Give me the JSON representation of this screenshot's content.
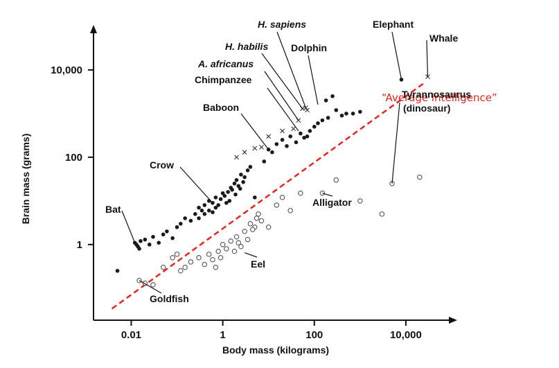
{
  "chart_data": {
    "type": "scatter",
    "title": "",
    "xlabel": "Body mass (kilograms)",
    "ylabel": "Brain mass (grams)",
    "x_scale": "log",
    "y_scale": "log",
    "xlim": [
      0.0015,
      100000
    ],
    "ylim": [
      0.0185,
      80000
    ],
    "x_ticks": [
      {
        "value": 0.01,
        "label": "0.01"
      },
      {
        "value": 1,
        "label": "1"
      },
      {
        "value": 100,
        "label": "100"
      },
      {
        "value": 10000,
        "label": "10,000"
      }
    ],
    "y_ticks": [
      {
        "value": 1,
        "label": "1"
      },
      {
        "value": 100,
        "label": "100"
      },
      {
        "value": 10000,
        "label": "10,000"
      }
    ],
    "grid": false,
    "legend": null,
    "colors": {
      "filled": "#1a1a1a",
      "open": "#555555",
      "cross": "#333333",
      "trend": "#e8231f"
    },
    "series": [
      {
        "marker": "filled-circle",
        "points": [
          [
            0.005,
            0.25
          ],
          [
            0.012,
            1.1
          ],
          [
            0.014,
            0.9
          ],
          [
            0.016,
            1.2
          ],
          [
            0.013,
            1.0
          ],
          [
            0.015,
            0.8
          ],
          [
            0.02,
            1.3
          ],
          [
            0.025,
            1.0
          ],
          [
            0.03,
            1.5
          ],
          [
            0.04,
            1.1
          ],
          [
            0.05,
            1.7
          ],
          [
            0.06,
            2.0
          ],
          [
            0.08,
            1.4
          ],
          [
            0.1,
            2.5
          ],
          [
            0.12,
            3.0
          ],
          [
            0.15,
            4.0
          ],
          [
            0.2,
            3.5
          ],
          [
            0.25,
            5.0
          ],
          [
            0.3,
            7.0
          ],
          [
            0.35,
            6.0
          ],
          [
            0.4,
            8.0
          ],
          [
            0.5,
            10.0
          ],
          [
            0.6,
            9.0
          ],
          [
            0.7,
            12.0
          ],
          [
            0.8,
            8.0
          ],
          [
            1.0,
            15.0
          ],
          [
            1.2,
            9.0
          ],
          [
            1.5,
            20.0
          ],
          [
            1.8,
            25.0
          ],
          [
            2.0,
            30.0
          ],
          [
            2.2,
            22.0
          ],
          [
            2.5,
            40.0
          ],
          [
            3.0,
            35.0
          ],
          [
            3.5,
            50.0
          ],
          [
            0.5,
            6.0
          ],
          [
            0.7,
            7.0
          ],
          [
            0.9,
            11.0
          ],
          [
            1.1,
            13.0
          ],
          [
            1.3,
            16.0
          ],
          [
            1.6,
            18.0
          ],
          [
            1.9,
            14.0
          ],
          [
            2.4,
            19.0
          ],
          [
            2.8,
            27.0
          ],
          [
            4.0,
            60.0
          ],
          [
            0.3,
            4.0
          ],
          [
            0.4,
            5.0
          ],
          [
            0.6,
            5.5
          ],
          [
            1.4,
            10.0
          ],
          [
            5.0,
            12.0
          ],
          [
            8.0,
            80.0
          ],
          [
            10.0,
            150.0
          ],
          [
            12.0,
            130.0
          ],
          [
            15.0,
            200.0
          ],
          [
            20.0,
            250.0
          ],
          [
            25.0,
            180.0
          ],
          [
            30.0,
            300.0
          ],
          [
            40.0,
            220.0
          ],
          [
            50.0,
            350.0
          ],
          [
            60.0,
            280.0
          ],
          [
            70.0,
            300.0
          ],
          [
            80.0,
            400.0
          ],
          [
            100.0,
            500.0
          ],
          [
            120.0,
            600.0
          ],
          [
            150.0,
            700.0
          ],
          [
            200.0,
            800.0
          ],
          [
            300.0,
            1200.0
          ],
          [
            400.0,
            900.0
          ],
          [
            500.0,
            1000.0
          ],
          [
            700.0,
            1000.0
          ],
          [
            1000.0,
            1100.0
          ],
          [
            180.0,
            2000.0
          ],
          [
            250.0,
            2500.0
          ],
          [
            8000.0,
            6000.0
          ]
        ]
      },
      {
        "marker": "cross",
        "points": [
          [
            2.0,
            100.0
          ],
          [
            3.0,
            130.0
          ],
          [
            5.0,
            160.0
          ],
          [
            7.0,
            170.0
          ],
          [
            10.0,
            300.0
          ],
          [
            20.0,
            400.0
          ],
          [
            35.0,
            450.0
          ],
          [
            45.0,
            700.0
          ],
          [
            55.0,
            1300.0
          ],
          [
            65.0,
            1350.0
          ],
          [
            70.0,
            1200.0
          ],
          [
            30000.0,
            7000.0
          ]
        ]
      },
      {
        "marker": "open-circle",
        "points": [
          [
            0.015,
            0.15
          ],
          [
            0.02,
            0.13
          ],
          [
            0.03,
            0.12
          ],
          [
            0.05,
            0.3
          ],
          [
            0.08,
            0.5
          ],
          [
            0.1,
            0.6
          ],
          [
            0.12,
            0.25
          ],
          [
            0.15,
            0.3
          ],
          [
            0.2,
            0.4
          ],
          [
            0.3,
            0.5
          ],
          [
            0.4,
            0.35
          ],
          [
            0.5,
            0.6
          ],
          [
            0.6,
            0.45
          ],
          [
            0.8,
            0.7
          ],
          [
            1.0,
            1.0
          ],
          [
            1.2,
            0.8
          ],
          [
            1.5,
            1.2
          ],
          [
            2.0,
            1.5
          ],
          [
            2.5,
            0.9
          ],
          [
            3.0,
            2.0
          ],
          [
            4.0,
            3.0
          ],
          [
            5.0,
            2.5
          ],
          [
            0.7,
            0.3
          ],
          [
            0.9,
            0.5
          ],
          [
            1.8,
            0.7
          ],
          [
            2.2,
            1.1
          ],
          [
            3.5,
            1.3
          ],
          [
            4.5,
            2.2
          ],
          [
            5.5,
            4.0
          ],
          [
            6.0,
            5.0
          ],
          [
            7.0,
            3.5
          ],
          [
            10.0,
            2.5
          ],
          [
            15.0,
            8.0
          ],
          [
            20.0,
            12.0
          ],
          [
            30.0,
            6.0
          ],
          [
            50.0,
            15.0
          ],
          [
            150.0,
            15.0
          ],
          [
            300.0,
            30.0
          ],
          [
            1000.0,
            10.0
          ],
          [
            3000.0,
            5.0
          ],
          [
            5000.0,
            25.0
          ],
          [
            20000.0,
            35.0
          ]
        ]
      }
    ],
    "trendline": {
      "name": "“Average intelligence”",
      "from": [
        0.0038,
        0.034
      ],
      "to": [
        25000.0,
        5000.0
      ]
    },
    "annotations": [
      {
        "text": "H. sapiens",
        "italic": true,
        "point": [
          65.0,
          1350.0
        ]
      },
      {
        "text": "H. habilis",
        "italic": true,
        "point": [
          55.0,
          1300.0
        ]
      },
      {
        "text": "A. africanus",
        "italic": true,
        "point": [
          45.0,
          700.0
        ]
      },
      {
        "text": "Dolphin",
        "italic": false,
        "point": [
          120.0,
          1600.0
        ]
      },
      {
        "text": "Chimpanzee",
        "italic": false,
        "point": [
          45.0,
          400.0
        ]
      },
      {
        "text": "Baboon",
        "italic": false,
        "point": [
          10.0,
          150.0
        ]
      },
      {
        "text": "Crow",
        "italic": false,
        "point": [
          0.6,
          9.0
        ]
      },
      {
        "text": "Bat",
        "italic": false,
        "point": [
          0.012,
          1.1
        ]
      },
      {
        "text": "Elephant",
        "italic": false,
        "point": [
          8000.0,
          6000.0
        ]
      },
      {
        "text": "Whale",
        "italic": false,
        "point": [
          30000.0,
          7000.0
        ]
      },
      {
        "text": "Tyrannosaurus",
        "italic": false,
        "point": [
          5000.0,
          25.0
        ]
      },
      {
        "text": "(dinosaur)",
        "italic": false,
        "point": null
      },
      {
        "text": "Alligator",
        "italic": false,
        "point": [
          150.0,
          15.0
        ]
      },
      {
        "text": "Eel",
        "italic": false,
        "point": [
          3.0,
          0.65
        ]
      },
      {
        "text": "Goldfish",
        "italic": false,
        "point": [
          0.015,
          0.15
        ]
      }
    ]
  }
}
